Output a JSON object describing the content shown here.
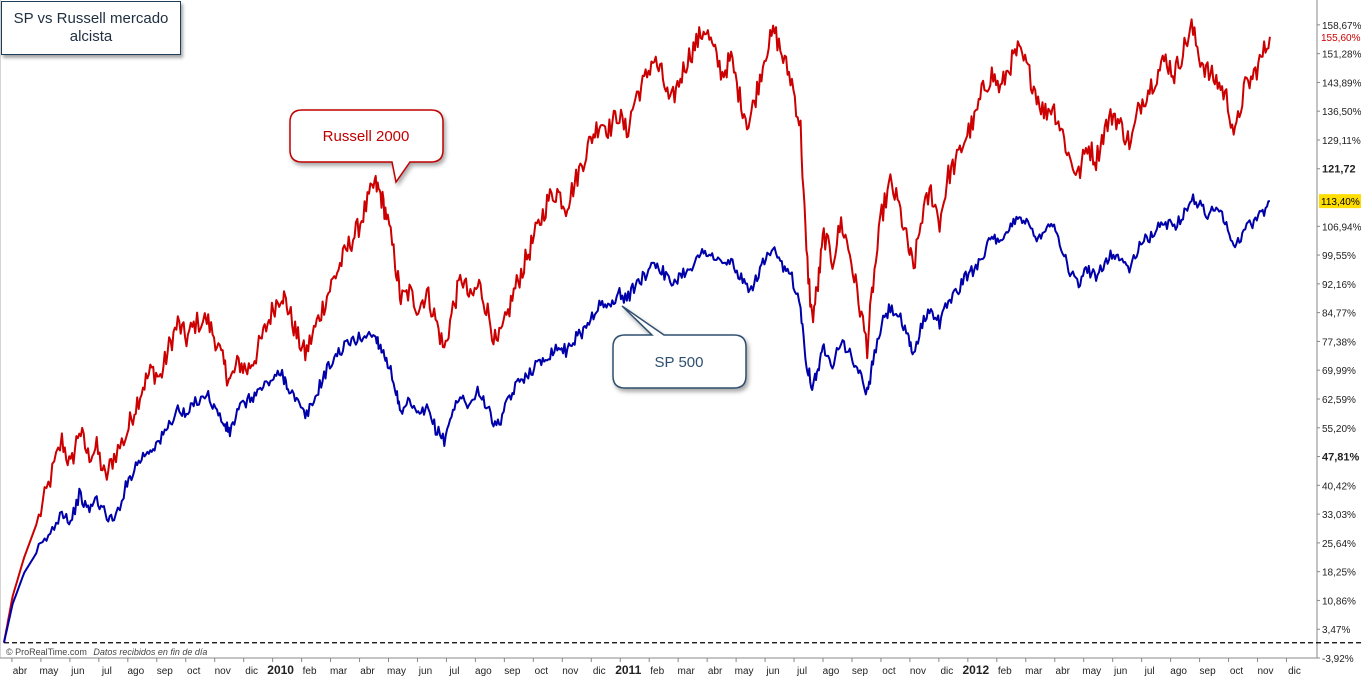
{
  "title": "SP vs Russell mercado alcista",
  "footer": {
    "brand": "© ProRealTime.com",
    "note": "Datos recibidos en fin de día"
  },
  "callouts": {
    "russell": "Russell 2000",
    "sp": "SP 500"
  },
  "colors": {
    "russell": "#cc0000",
    "sp": "#0000aa",
    "russell_tag_bg": "#ffffff",
    "sp_tag_bg": "#ffdd00"
  },
  "chart_data": {
    "type": "line",
    "y_unit": "%",
    "ylim": [
      -3.92,
      163
    ],
    "y_ticks": [
      "158,67%",
      "151,28%",
      "143,89%",
      "136,50%",
      "129,11%",
      "121,72",
      "106,94%",
      "99,55%",
      "92,16%",
      "84,77%",
      "77,38%",
      "69,99%",
      "62,59%",
      "55,20%",
      "47,81%",
      "40,42%",
      "33,03%",
      "25,64%",
      "18,25%",
      "10,86%",
      "3,47%",
      "-3,92%"
    ],
    "y_tick_values": [
      158.67,
      151.28,
      143.89,
      136.5,
      129.11,
      121.72,
      106.94,
      99.55,
      92.16,
      84.77,
      77.38,
      69.99,
      62.59,
      55.2,
      47.81,
      40.42,
      33.03,
      25.64,
      18.25,
      10.86,
      3.47,
      -3.92
    ],
    "bold_ticks": [
      "121,72",
      "47,81%"
    ],
    "x_ticks": [
      "abr",
      "may",
      "jun",
      "jul",
      "ago",
      "sep",
      "oct",
      "nov",
      "dic",
      "2010",
      "feb",
      "mar",
      "abr",
      "may",
      "jun",
      "jul",
      "ago",
      "sep",
      "oct",
      "nov",
      "dic",
      "2011",
      "feb",
      "mar",
      "abr",
      "may",
      "jun",
      "jul",
      "ago",
      "sep",
      "oct",
      "nov",
      "dic",
      "2012",
      "feb",
      "mar",
      "abr",
      "may",
      "jun",
      "jul",
      "ago",
      "sep",
      "oct",
      "nov",
      "dic"
    ],
    "bold_x_ticks": [
      "2010",
      "2011",
      "2012"
    ],
    "x_range": [
      0,
      45.5
    ],
    "zero_line": 0,
    "series": [
      {
        "name": "Russell 2000",
        "last_label": "155,60%",
        "points": [
          [
            0,
            0
          ],
          [
            0.3,
            12
          ],
          [
            0.7,
            22
          ],
          [
            1.2,
            32
          ],
          [
            1.6,
            42
          ],
          [
            2.0,
            52
          ],
          [
            2.3,
            45
          ],
          [
            2.6,
            55
          ],
          [
            2.9,
            48
          ],
          [
            3.2,
            50
          ],
          [
            3.5,
            42
          ],
          [
            3.8,
            48
          ],
          [
            4.2,
            53
          ],
          [
            4.5,
            60
          ],
          [
            4.8,
            66
          ],
          [
            5.1,
            70
          ],
          [
            5.4,
            68
          ],
          [
            5.7,
            76
          ],
          [
            6.0,
            82
          ],
          [
            6.3,
            78
          ],
          [
            6.6,
            82
          ],
          [
            7.0,
            83
          ],
          [
            7.3,
            78
          ],
          [
            7.6,
            71
          ],
          [
            7.8,
            67
          ],
          [
            8.1,
            72
          ],
          [
            8.4,
            70
          ],
          [
            8.7,
            74
          ],
          [
            9.0,
            80
          ],
          [
            9.3,
            86
          ],
          [
            9.6,
            90
          ],
          [
            9.8,
            86
          ],
          [
            10.1,
            79
          ],
          [
            10.4,
            74
          ],
          [
            10.7,
            80
          ],
          [
            11.0,
            86
          ],
          [
            11.3,
            92
          ],
          [
            11.6,
            97
          ],
          [
            11.9,
            102
          ],
          [
            12.2,
            106
          ],
          [
            12.5,
            112
          ],
          [
            12.8,
            118
          ],
          [
            13.0,
            115
          ],
          [
            13.2,
            110
          ],
          [
            13.5,
            98
          ],
          [
            13.7,
            88
          ],
          [
            14.0,
            90
          ],
          [
            14.3,
            86
          ],
          [
            14.6,
            90
          ],
          [
            14.9,
            83
          ],
          [
            15.2,
            75
          ],
          [
            15.5,
            86
          ],
          [
            15.8,
            94
          ],
          [
            16.1,
            88
          ],
          [
            16.4,
            92
          ],
          [
            16.7,
            85
          ],
          [
            17.0,
            76
          ],
          [
            17.3,
            82
          ],
          [
            17.6,
            90
          ],
          [
            17.9,
            96
          ],
          [
            18.2,
            102
          ],
          [
            18.5,
            108
          ],
          [
            18.8,
            114
          ],
          [
            19.1,
            116
          ],
          [
            19.4,
            112
          ],
          [
            19.7,
            118
          ],
          [
            20.0,
            124
          ],
          [
            20.3,
            130
          ],
          [
            20.6,
            134
          ],
          [
            20.9,
            132
          ],
          [
            21.2,
            136
          ],
          [
            21.5,
            131
          ],
          [
            21.8,
            140
          ],
          [
            22.1,
            144
          ],
          [
            22.4,
            150
          ],
          [
            22.7,
            146
          ],
          [
            23.0,
            138
          ],
          [
            23.3,
            144
          ],
          [
            23.6,
            150
          ],
          [
            23.9,
            154
          ],
          [
            24.2,
            158
          ],
          [
            24.5,
            152
          ],
          [
            24.8,
            146
          ],
          [
            25.1,
            150
          ],
          [
            25.4,
            140
          ],
          [
            25.7,
            133
          ],
          [
            26.0,
            142
          ],
          [
            26.3,
            152
          ],
          [
            26.6,
            157
          ],
          [
            26.9,
            150
          ],
          [
            27.2,
            144
          ],
          [
            27.5,
            132
          ],
          [
            27.7,
            100
          ],
          [
            27.9,
            83
          ],
          [
            28.1,
            92
          ],
          [
            28.3,
            105
          ],
          [
            28.6,
            98
          ],
          [
            28.9,
            108
          ],
          [
            29.2,
            100
          ],
          [
            29.5,
            88
          ],
          [
            29.8,
            76
          ],
          [
            30.0,
            92
          ],
          [
            30.3,
            110
          ],
          [
            30.6,
            118
          ],
          [
            30.9,
            112
          ],
          [
            31.2,
            102
          ],
          [
            31.4,
            96
          ],
          [
            31.7,
            110
          ],
          [
            32.0,
            116
          ],
          [
            32.3,
            108
          ],
          [
            32.6,
            120
          ],
          [
            32.9,
            124
          ],
          [
            33.2,
            130
          ],
          [
            33.5,
            134
          ],
          [
            33.8,
            142
          ],
          [
            34.1,
            146
          ],
          [
            34.4,
            142
          ],
          [
            34.7,
            148
          ],
          [
            35.0,
            152
          ],
          [
            35.3,
            148
          ],
          [
            35.6,
            142
          ],
          [
            35.9,
            136
          ],
          [
            36.2,
            138
          ],
          [
            36.5,
            132
          ],
          [
            36.8,
            124
          ],
          [
            37.1,
            120
          ],
          [
            37.4,
            128
          ],
          [
            37.7,
            124
          ],
          [
            38.0,
            132
          ],
          [
            38.3,
            136
          ],
          [
            38.6,
            132
          ],
          [
            38.9,
            128
          ],
          [
            39.2,
            138
          ],
          [
            39.5,
            142
          ],
          [
            39.8,
            146
          ],
          [
            40.1,
            150
          ],
          [
            40.4,
            146
          ],
          [
            40.7,
            152
          ],
          [
            41.0,
            158
          ],
          [
            41.3,
            150
          ],
          [
            41.6,
            146
          ],
          [
            41.9,
            144
          ],
          [
            42.2,
            140
          ],
          [
            42.5,
            130
          ],
          [
            42.8,
            142
          ],
          [
            43.1,
            145
          ],
          [
            43.4,
            150
          ],
          [
            43.7,
            155.6
          ]
        ]
      },
      {
        "name": "SP 500",
        "last_label": "113,40%",
        "points": [
          [
            0,
            0
          ],
          [
            0.3,
            10
          ],
          [
            0.7,
            18
          ],
          [
            1.2,
            24
          ],
          [
            1.6,
            28
          ],
          [
            2.0,
            34
          ],
          [
            2.3,
            31
          ],
          [
            2.6,
            38
          ],
          [
            2.9,
            34
          ],
          [
            3.2,
            37
          ],
          [
            3.5,
            33
          ],
          [
            3.8,
            31
          ],
          [
            4.2,
            40
          ],
          [
            4.5,
            45
          ],
          [
            4.8,
            48
          ],
          [
            5.1,
            50
          ],
          [
            5.4,
            52
          ],
          [
            5.7,
            56
          ],
          [
            6.0,
            60
          ],
          [
            6.3,
            58
          ],
          [
            6.6,
            62
          ],
          [
            7.0,
            64
          ],
          [
            7.3,
            60
          ],
          [
            7.6,
            56
          ],
          [
            7.8,
            54
          ],
          [
            8.1,
            60
          ],
          [
            8.4,
            62
          ],
          [
            8.7,
            64
          ],
          [
            9.0,
            66
          ],
          [
            9.3,
            68
          ],
          [
            9.6,
            69
          ],
          [
            9.8,
            66
          ],
          [
            10.1,
            62
          ],
          [
            10.4,
            58
          ],
          [
            10.7,
            62
          ],
          [
            11.0,
            68
          ],
          [
            11.3,
            72
          ],
          [
            11.6,
            75
          ],
          [
            11.9,
            77
          ],
          [
            12.2,
            78
          ],
          [
            12.5,
            79
          ],
          [
            12.8,
            79
          ],
          [
            13.0,
            76
          ],
          [
            13.2,
            73
          ],
          [
            13.5,
            66
          ],
          [
            13.7,
            58
          ],
          [
            14.0,
            62
          ],
          [
            14.3,
            58
          ],
          [
            14.6,
            60
          ],
          [
            14.9,
            55
          ],
          [
            15.2,
            52
          ],
          [
            15.5,
            60
          ],
          [
            15.8,
            63
          ],
          [
            16.1,
            61
          ],
          [
            16.4,
            65
          ],
          [
            16.7,
            60
          ],
          [
            17.0,
            55
          ],
          [
            17.3,
            60
          ],
          [
            17.6,
            65
          ],
          [
            17.9,
            68
          ],
          [
            18.2,
            70
          ],
          [
            18.5,
            72
          ],
          [
            18.8,
            74
          ],
          [
            19.1,
            76
          ],
          [
            19.4,
            75
          ],
          [
            19.7,
            78
          ],
          [
            20.0,
            80
          ],
          [
            20.3,
            84
          ],
          [
            20.6,
            87
          ],
          [
            20.9,
            86
          ],
          [
            21.2,
            90
          ],
          [
            21.5,
            88
          ],
          [
            21.8,
            92
          ],
          [
            22.1,
            94
          ],
          [
            22.4,
            98
          ],
          [
            22.7,
            96
          ],
          [
            23.0,
            92
          ],
          [
            23.3,
            94
          ],
          [
            23.6,
            96
          ],
          [
            23.9,
            98
          ],
          [
            24.2,
            101
          ],
          [
            24.5,
            99
          ],
          [
            24.8,
            97
          ],
          [
            25.1,
            98
          ],
          [
            25.4,
            94
          ],
          [
            25.7,
            90
          ],
          [
            26.0,
            94
          ],
          [
            26.3,
            99
          ],
          [
            26.6,
            100
          ],
          [
            26.9,
            96
          ],
          [
            27.2,
            94
          ],
          [
            27.5,
            86
          ],
          [
            27.7,
            72
          ],
          [
            27.9,
            66
          ],
          [
            28.1,
            70
          ],
          [
            28.3,
            76
          ],
          [
            28.6,
            72
          ],
          [
            28.9,
            78
          ],
          [
            29.2,
            74
          ],
          [
            29.5,
            70
          ],
          [
            29.8,
            64
          ],
          [
            30.0,
            72
          ],
          [
            30.3,
            82
          ],
          [
            30.6,
            86
          ],
          [
            30.9,
            84
          ],
          [
            31.2,
            78
          ],
          [
            31.4,
            74
          ],
          [
            31.7,
            82
          ],
          [
            32.0,
            86
          ],
          [
            32.3,
            82
          ],
          [
            32.6,
            88
          ],
          [
            32.9,
            90
          ],
          [
            33.2,
            94
          ],
          [
            33.5,
            96
          ],
          [
            33.8,
            100
          ],
          [
            34.1,
            104
          ],
          [
            34.4,
            102
          ],
          [
            34.7,
            106
          ],
          [
            35.0,
            110
          ],
          [
            35.3,
            108
          ],
          [
            35.6,
            104
          ],
          [
            35.9,
            106
          ],
          [
            36.2,
            108
          ],
          [
            36.5,
            102
          ],
          [
            36.8,
            95
          ],
          [
            37.1,
            92
          ],
          [
            37.4,
            96
          ],
          [
            37.7,
            94
          ],
          [
            38.0,
            98
          ],
          [
            38.3,
            100
          ],
          [
            38.6,
            98
          ],
          [
            38.9,
            96
          ],
          [
            39.2,
            102
          ],
          [
            39.5,
            104
          ],
          [
            39.8,
            106
          ],
          [
            40.1,
            108
          ],
          [
            40.4,
            107
          ],
          [
            40.7,
            110
          ],
          [
            41.0,
            114
          ],
          [
            41.3,
            112
          ],
          [
            41.6,
            110
          ],
          [
            41.9,
            112
          ],
          [
            42.2,
            108
          ],
          [
            42.5,
            101
          ],
          [
            42.8,
            106
          ],
          [
            43.1,
            108
          ],
          [
            43.4,
            110
          ],
          [
            43.7,
            113.4
          ]
        ]
      }
    ]
  }
}
